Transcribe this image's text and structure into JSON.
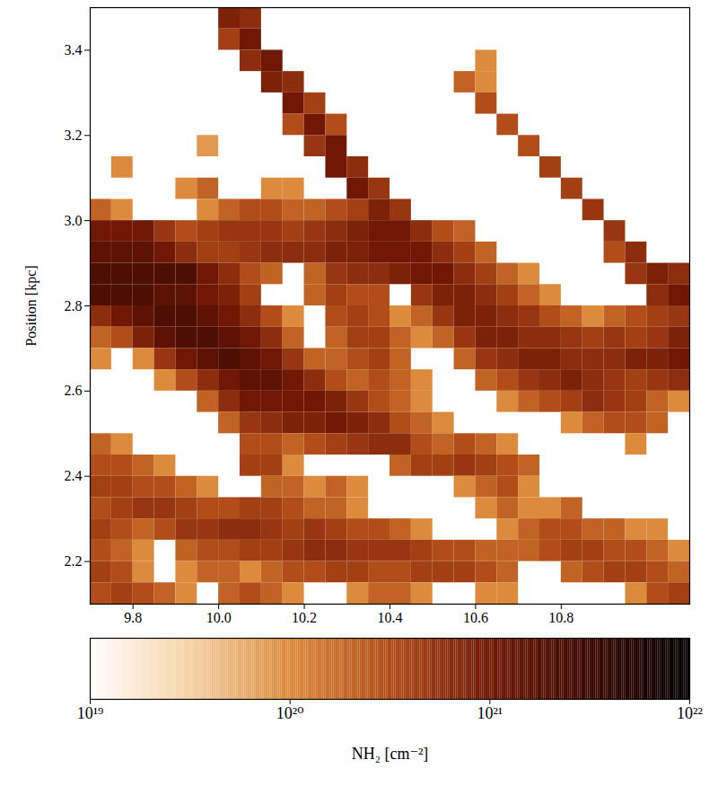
{
  "chart_data": {
    "type": "heatmap",
    "ylabel": "Position [kpc]",
    "xlim": [
      9.7,
      11.1
    ],
    "ylim": [
      2.1,
      3.5
    ],
    "xticks": [
      9.8,
      {
        "value": 10,
        "label": "10.0"
      },
      10.2,
      10.4,
      10.6,
      10.8
    ],
    "yticks": [
      2.2,
      2.4,
      2.6,
      2.8,
      {
        "value": 3,
        "label": "3.0"
      },
      3.2,
      3.4
    ],
    "x_bins": [
      9.7,
      9.75,
      9.8,
      9.85,
      9.9,
      9.95,
      10,
      10.05,
      10.1,
      10.15,
      10.2,
      10.25,
      10.3,
      10.35,
      10.4,
      10.45,
      10.5,
      10.55,
      10.6,
      10.65,
      10.7,
      10.75,
      10.8,
      10.85,
      10.9,
      10.95,
      11,
      11.05,
      11.1
    ],
    "y_bins": [
      3.5,
      3.45,
      3.4,
      3.35,
      3.3,
      3.25,
      3.2,
      3.15,
      3.1,
      3.05,
      3,
      2.95,
      2.9,
      2.85,
      2.8,
      2.75,
      2.7,
      2.65,
      2.6,
      2.55,
      2.5,
      2.45,
      2.4,
      2.35,
      2.3,
      2.25,
      2.2,
      2.15,
      2.1
    ],
    "values": [
      [
        null,
        null,
        null,
        null,
        null,
        null,
        8e+20,
        6e+20,
        null,
        null,
        null,
        null,
        null,
        null,
        null,
        null,
        null,
        null,
        null,
        null,
        null,
        null,
        null,
        null,
        null,
        null,
        null,
        null
      ],
      [
        null,
        null,
        null,
        null,
        null,
        null,
        4e+20,
        1e+21,
        null,
        null,
        null,
        null,
        null,
        null,
        null,
        null,
        null,
        null,
        null,
        null,
        null,
        null,
        null,
        null,
        null,
        null,
        null,
        null
      ],
      [
        null,
        null,
        null,
        null,
        null,
        null,
        null,
        6e+20,
        1e+21,
        null,
        null,
        null,
        null,
        null,
        null,
        null,
        null,
        null,
        1e+20,
        null,
        null,
        null,
        null,
        null,
        null,
        null,
        null,
        null
      ],
      [
        null,
        null,
        null,
        null,
        null,
        null,
        null,
        null,
        8e+20,
        6e+20,
        null,
        null,
        null,
        null,
        null,
        null,
        null,
        2e+20,
        1e+20,
        null,
        null,
        null,
        null,
        null,
        null,
        null,
        null,
        null
      ],
      [
        null,
        null,
        null,
        null,
        null,
        null,
        null,
        null,
        null,
        1e+21,
        4e+20,
        null,
        null,
        null,
        null,
        null,
        null,
        null,
        3e+20,
        null,
        null,
        null,
        null,
        null,
        null,
        null,
        null,
        null
      ],
      [
        null,
        null,
        null,
        null,
        null,
        null,
        null,
        null,
        null,
        3e+20,
        1e+21,
        3e+20,
        null,
        null,
        null,
        null,
        null,
        null,
        null,
        3e+20,
        null,
        null,
        null,
        null,
        null,
        null,
        null,
        null
      ],
      [
        null,
        null,
        null,
        null,
        null,
        8e+19,
        null,
        null,
        null,
        null,
        5e+20,
        1e+21,
        null,
        null,
        null,
        null,
        null,
        null,
        null,
        null,
        3e+20,
        null,
        null,
        null,
        null,
        null,
        null,
        null
      ],
      [
        null,
        1e+20,
        null,
        null,
        null,
        null,
        null,
        null,
        null,
        null,
        null,
        1e+21,
        6e+20,
        null,
        null,
        null,
        null,
        null,
        null,
        null,
        null,
        4e+20,
        null,
        null,
        null,
        null,
        null,
        null
      ],
      [
        null,
        null,
        null,
        null,
        1e+20,
        2e+20,
        null,
        null,
        1e+20,
        1e+20,
        null,
        null,
        1e+21,
        5e+20,
        null,
        null,
        null,
        null,
        null,
        null,
        null,
        null,
        4e+20,
        null,
        null,
        null,
        null,
        null
      ],
      [
        2e+20,
        1e+20,
        null,
        null,
        null,
        1e+20,
        2e+20,
        3e+20,
        3e+20,
        2e+20,
        2e+20,
        3e+20,
        4e+20,
        8e+20,
        5e+20,
        null,
        null,
        null,
        null,
        null,
        null,
        null,
        null,
        5e+20,
        null,
        null,
        null,
        null
      ],
      [
        1e+21,
        1e+21,
        1e+21,
        5e+20,
        3e+20,
        4e+20,
        5e+20,
        5e+20,
        5e+20,
        4e+20,
        5e+20,
        6e+20,
        8e+20,
        1e+21,
        1e+21,
        6e+20,
        3e+20,
        2e+20,
        null,
        null,
        null,
        null,
        null,
        null,
        5e+20,
        null,
        null,
        null
      ],
      [
        1.5e+21,
        1.5e+21,
        1.5e+21,
        1e+21,
        6e+20,
        4e+20,
        4e+20,
        5e+20,
        6e+20,
        6e+20,
        6e+20,
        8e+20,
        8e+20,
        1e+21,
        1e+21,
        1e+21,
        6e+20,
        4e+20,
        2e+20,
        null,
        null,
        null,
        null,
        null,
        3e+20,
        6e+20,
        null,
        null
      ],
      [
        2e+21,
        2e+21,
        2e+21,
        2e+21,
        2e+21,
        1e+21,
        6e+20,
        3e+20,
        2e+20,
        null,
        2e+20,
        5e+20,
        6e+20,
        6e+20,
        8e+20,
        1e+21,
        1e+21,
        6e+20,
        4e+20,
        2e+20,
        1e+20,
        null,
        null,
        null,
        null,
        5e+20,
        8e+20,
        6e+20
      ],
      [
        2e+21,
        2e+21,
        2e+21,
        1.5e+21,
        1.5e+21,
        1e+21,
        8e+20,
        4e+20,
        null,
        null,
        2e+20,
        4e+20,
        3e+20,
        3e+20,
        null,
        5e+20,
        8e+20,
        8e+20,
        6e+20,
        4e+20,
        2e+20,
        1e+20,
        null,
        null,
        null,
        null,
        6e+20,
        1e+21
      ],
      [
        6e+20,
        1e+21,
        1.5e+21,
        2e+21,
        2e+21,
        1.5e+21,
        1e+21,
        6e+20,
        3e+20,
        1e+20,
        null,
        3e+20,
        4e+20,
        3e+20,
        1e+20,
        2e+20,
        5e+20,
        8e+20,
        8e+20,
        6e+20,
        5e+20,
        3e+20,
        2e+20,
        1e+20,
        2e+20,
        3e+20,
        4e+20,
        5e+20
      ],
      [
        2e+20,
        3e+20,
        8e+20,
        1.5e+21,
        2e+21,
        2e+21,
        1.5e+21,
        1e+21,
        6e+20,
        2e+20,
        null,
        2e+20,
        4e+20,
        4e+20,
        2e+20,
        1e+20,
        2e+20,
        5e+20,
        8e+20,
        8e+20,
        6e+20,
        6e+20,
        5e+20,
        4e+20,
        5e+20,
        4e+20,
        5e+20,
        8e+20
      ],
      [
        1e+20,
        null,
        1e+20,
        5e+20,
        1e+21,
        1.5e+21,
        2e+21,
        1.5e+21,
        1e+21,
        5e+20,
        2e+20,
        2e+20,
        3e+20,
        4e+20,
        2e+20,
        null,
        null,
        2e+20,
        5e+20,
        6e+20,
        8e+20,
        8e+20,
        6e+20,
        6e+20,
        6e+20,
        8e+20,
        8e+20,
        1e+21
      ],
      [
        null,
        null,
        null,
        1e+20,
        3e+20,
        6e+20,
        1e+21,
        1.5e+21,
        1.5e+21,
        1e+21,
        6e+20,
        3e+20,
        2e+20,
        3e+20,
        2e+20,
        1e+20,
        null,
        null,
        2e+20,
        3e+20,
        5e+20,
        6e+20,
        8e+20,
        6e+20,
        5e+20,
        4e+20,
        5e+20,
        6e+20
      ],
      [
        null,
        null,
        null,
        null,
        null,
        2e+20,
        6e+20,
        1e+21,
        1e+21,
        1e+21,
        1e+21,
        8e+20,
        5e+20,
        3e+20,
        2e+20,
        1e+20,
        null,
        null,
        null,
        1e+20,
        2e+20,
        3e+20,
        4e+20,
        6e+20,
        5e+20,
        4e+20,
        2e+20,
        1e+20
      ],
      [
        null,
        null,
        null,
        null,
        null,
        null,
        2e+20,
        5e+20,
        6e+20,
        8e+20,
        8e+20,
        1e+21,
        8e+20,
        6e+20,
        3e+20,
        2e+20,
        1e+20,
        null,
        null,
        null,
        null,
        null,
        1e+20,
        2e+20,
        3e+20,
        3e+20,
        2e+20,
        null
      ],
      [
        2e+20,
        1e+20,
        null,
        null,
        null,
        null,
        null,
        3e+20,
        3e+20,
        2e+20,
        3e+20,
        4e+20,
        5e+20,
        6e+20,
        6e+20,
        3e+20,
        2e+20,
        3e+20,
        2e+20,
        1e+20,
        null,
        null,
        null,
        null,
        null,
        1e+20,
        null,
        null
      ],
      [
        3e+20,
        3e+20,
        2e+20,
        1e+20,
        null,
        null,
        null,
        4e+20,
        4e+20,
        1e+20,
        null,
        null,
        null,
        null,
        2e+20,
        4e+20,
        4e+20,
        5e+20,
        4e+20,
        3e+20,
        2e+20,
        null,
        null,
        null,
        null,
        null,
        null,
        null
      ],
      [
        4e+20,
        4e+20,
        3e+20,
        3e+20,
        2e+20,
        1e+20,
        null,
        null,
        2e+20,
        2e+20,
        1e+20,
        2e+20,
        1e+20,
        null,
        null,
        null,
        null,
        1e+20,
        2e+20,
        3e+20,
        1e+20,
        null,
        null,
        null,
        null,
        null,
        null,
        null
      ],
      [
        3e+20,
        4e+20,
        5e+20,
        5e+20,
        4e+20,
        3e+20,
        3e+20,
        4e+20,
        4e+20,
        3e+20,
        2e+20,
        2e+20,
        1e+20,
        null,
        null,
        null,
        null,
        null,
        1e+20,
        2e+20,
        1e+20,
        1e+20,
        2e+20,
        null,
        null,
        null,
        null,
        null
      ],
      [
        4e+20,
        3e+20,
        2e+20,
        3e+20,
        5e+20,
        5e+20,
        6e+20,
        6e+20,
        5e+20,
        4e+20,
        5e+20,
        4e+20,
        3e+20,
        3e+20,
        2e+20,
        1e+20,
        null,
        null,
        null,
        1e+20,
        2e+20,
        3e+20,
        3e+20,
        2e+20,
        2e+20,
        1e+20,
        1e+20,
        null
      ],
      [
        3e+20,
        2e+20,
        1e+20,
        null,
        2e+20,
        3e+20,
        3e+20,
        4e+20,
        4e+20,
        5e+20,
        6e+20,
        6e+20,
        5e+20,
        5e+20,
        5e+20,
        4e+20,
        3e+20,
        3e+20,
        2e+20,
        2e+20,
        2e+20,
        3e+20,
        4e+20,
        4e+20,
        3e+20,
        3e+20,
        2e+20,
        1e+20
      ],
      [
        4e+20,
        3e+20,
        1e+20,
        null,
        1e+20,
        2e+20,
        2e+20,
        1e+20,
        2e+20,
        3e+20,
        3e+20,
        4e+20,
        4e+20,
        3e+20,
        3e+20,
        4e+20,
        4e+20,
        4e+20,
        3e+20,
        2e+20,
        null,
        null,
        2e+20,
        3e+20,
        4e+20,
        4e+20,
        3e+20,
        2e+20
      ],
      [
        3e+20,
        4e+20,
        3e+20,
        2e+20,
        1e+20,
        null,
        2e+20,
        3e+20,
        2e+20,
        1e+20,
        null,
        null,
        1e+20,
        2e+20,
        2e+20,
        1e+20,
        null,
        null,
        1e+20,
        1e+20,
        null,
        null,
        null,
        null,
        null,
        1e+20,
        3e+20,
        4e+20
      ]
    ],
    "colorbar": {
      "label": "NH₂ [cm⁻²]",
      "log": true,
      "range": [
        1e+19,
        1e+22
      ],
      "ticks": [
        {
          "value": 1e+19,
          "label": "10¹⁹"
        },
        {
          "value": 1e+20,
          "label": "10²⁰"
        },
        {
          "value": 1e+21,
          "label": "10²¹"
        },
        {
          "value": 1e+22,
          "label": "10²²"
        }
      ]
    }
  }
}
